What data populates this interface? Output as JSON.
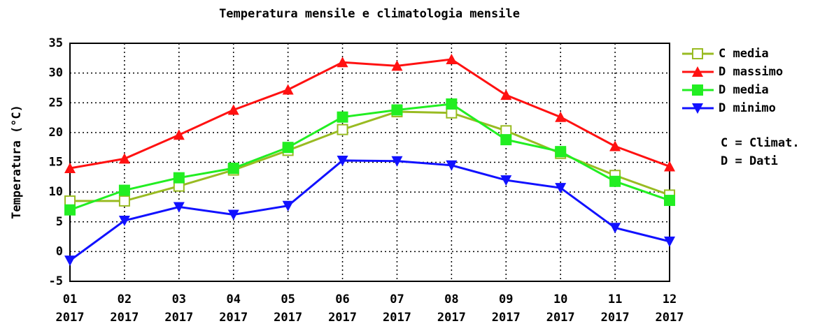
{
  "chart_data": {
    "type": "line",
    "title": "Temperatura mensile e climatologia mensile",
    "y_label": "Temperatura (°C)",
    "categories": [
      [
        "01",
        "2017"
      ],
      [
        "02",
        "2017"
      ],
      [
        "03",
        "2017"
      ],
      [
        "04",
        "2017"
      ],
      [
        "05",
        "2017"
      ],
      [
        "06",
        "2017"
      ],
      [
        "07",
        "2017"
      ],
      [
        "08",
        "2017"
      ],
      [
        "09",
        "2017"
      ],
      [
        "10",
        "2017"
      ],
      [
        "11",
        "2017"
      ],
      [
        "12",
        "2017"
      ]
    ],
    "series": [
      {
        "name": "C media",
        "color": "#99bb22",
        "marker": "square-open",
        "values": [
          8.5,
          8.5,
          11,
          13.7,
          17,
          20.5,
          23.5,
          23.3,
          20.3,
          16.5,
          12.8,
          9.5
        ]
      },
      {
        "name": "D massimo",
        "color": "#ff1111",
        "marker": "triangle-up",
        "values": [
          14,
          15.6,
          19.6,
          23.8,
          27.2,
          31.8,
          31.2,
          32.3,
          26.3,
          22.6,
          17.7,
          14.3
        ]
      },
      {
        "name": "D media",
        "color": "#22ee22",
        "marker": "square",
        "values": [
          7,
          10.3,
          12.4,
          14,
          17.5,
          22.6,
          23.8,
          24.8,
          18.8,
          16.8,
          11.8,
          8.6
        ]
      },
      {
        "name": "D minimo",
        "color": "#1111ff",
        "marker": "triangle-down",
        "values": [
          -1.5,
          5.2,
          7.5,
          6.2,
          7.7,
          15.3,
          15.2,
          14.5,
          12,
          10.7,
          4,
          1.7
        ]
      }
    ],
    "notes": [
      "C = Climat.",
      "D = Dati"
    ],
    "ylim": [
      -5,
      35
    ],
    "yticks": [
      -5,
      0,
      5,
      10,
      15,
      20,
      25,
      30,
      35
    ],
    "grid": true,
    "legend": "right"
  }
}
